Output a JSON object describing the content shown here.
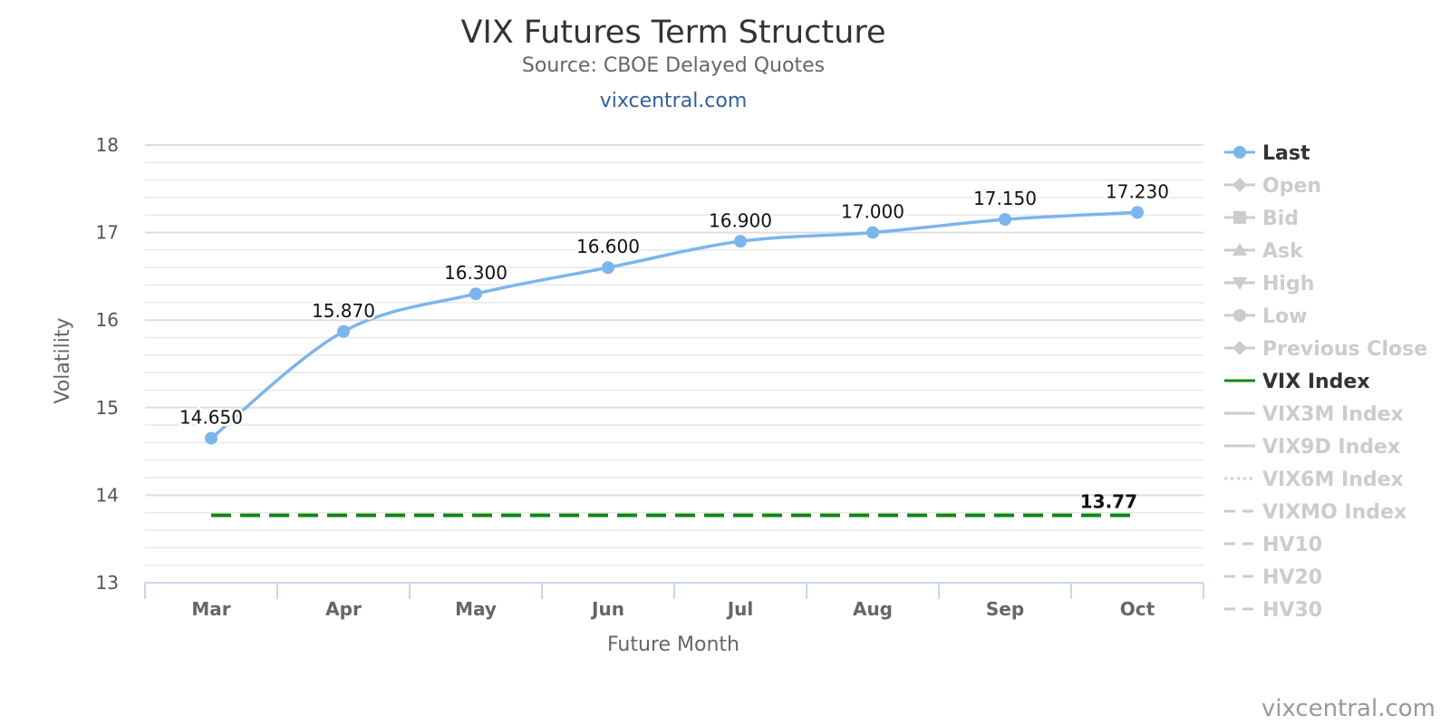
{
  "chart_data": {
    "type": "line",
    "title": "VIX Futures Term Structure",
    "subtitle": "Source: CBOE Delayed Quotes",
    "link_text": "vixcentral.com",
    "credit": "vixcentral.com",
    "xlabel": "Future Month",
    "ylabel": "Volatility",
    "categories": [
      "Mar",
      "Apr",
      "May",
      "Jun",
      "Jul",
      "Aug",
      "Sep",
      "Oct"
    ],
    "ylim": [
      13,
      18
    ],
    "yticks": [
      "13",
      "14",
      "15",
      "16",
      "17",
      "18"
    ],
    "grid": true,
    "legend_position": "right",
    "series": [
      {
        "name": "Last",
        "color": "#7cb5ec",
        "style": "spline",
        "marker": "circle",
        "values": [
          14.65,
          15.87,
          16.3,
          16.6,
          16.9,
          17.0,
          17.15,
          17.23
        ],
        "labels": [
          "14.650",
          "15.870",
          "16.300",
          "16.600",
          "16.900",
          "17.000",
          "17.150",
          "17.230"
        ]
      },
      {
        "name": "VIX Index",
        "color": "#118811",
        "style": "dashed",
        "values": [
          13.77,
          13.77,
          13.77,
          13.77,
          13.77,
          13.77,
          13.77,
          13.77
        ],
        "end_label": "13.77"
      }
    ],
    "legend": [
      {
        "name": "Last",
        "symbol": "circle",
        "active": true,
        "color": "#7cb5ec"
      },
      {
        "name": "Open",
        "symbol": "diamond",
        "active": false
      },
      {
        "name": "Bid",
        "symbol": "square",
        "active": false
      },
      {
        "name": "Ask",
        "symbol": "triangle",
        "active": false
      },
      {
        "name": "High",
        "symbol": "triangle-down",
        "active": false
      },
      {
        "name": "Low",
        "symbol": "circle",
        "active": false
      },
      {
        "name": "Previous Close",
        "symbol": "diamond",
        "active": false
      },
      {
        "name": "VIX Index",
        "symbol": "line",
        "active": true,
        "color": "#118811"
      },
      {
        "name": "VIX3M Index",
        "symbol": "line",
        "active": false
      },
      {
        "name": "VIX9D Index",
        "symbol": "line",
        "active": false
      },
      {
        "name": "VIX6M Index",
        "symbol": "dotted",
        "active": false
      },
      {
        "name": "VIXMO Index",
        "symbol": "dashed",
        "active": false
      },
      {
        "name": "HV10",
        "symbol": "dashed",
        "active": false
      },
      {
        "name": "HV20",
        "symbol": "dashed",
        "active": false
      },
      {
        "name": "HV30",
        "symbol": "dashed",
        "active": false
      }
    ],
    "colors": {
      "inactive": "#cccccc",
      "active_text": "#333333"
    }
  }
}
